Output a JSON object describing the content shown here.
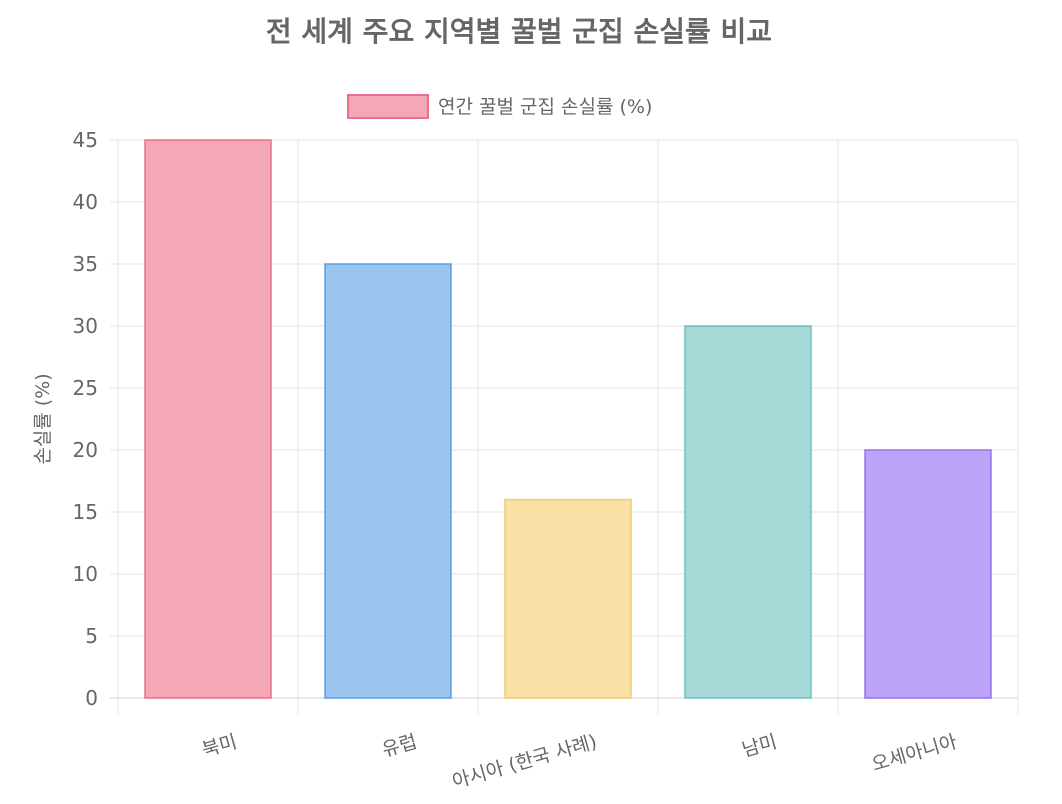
{
  "chart_data": {
    "type": "bar",
    "title": "전 세계 주요 지역별 꿀벌 군집 손실률 비교",
    "xlabel": "",
    "ylabel": "손실률 (%)",
    "ylim": [
      0,
      45
    ],
    "yticks": [
      0,
      5,
      10,
      15,
      20,
      25,
      30,
      35,
      40,
      45
    ],
    "grid": true,
    "legend_position": "top",
    "categories": [
      "북미",
      "유럽",
      "아시아 (한국 사례)",
      "남미",
      "오세아니아"
    ],
    "series": [
      {
        "name": "연간 꿀벌 군집 손실률 (%)",
        "values": [
          45,
          35,
          16,
          30,
          20
        ],
        "fill_colors": [
          "#f4a8b7",
          "#9bc5f0",
          "#f9e1a5",
          "#a7d8d8",
          "#bba3f8"
        ],
        "border_colors": [
          "#e8708a",
          "#5b9fe5",
          "#f2cc6a",
          "#6cc2c0",
          "#9a6ff0"
        ]
      }
    ],
    "legend_swatch": {
      "fill": "#f4a8b7",
      "border": "#e8708a"
    }
  }
}
